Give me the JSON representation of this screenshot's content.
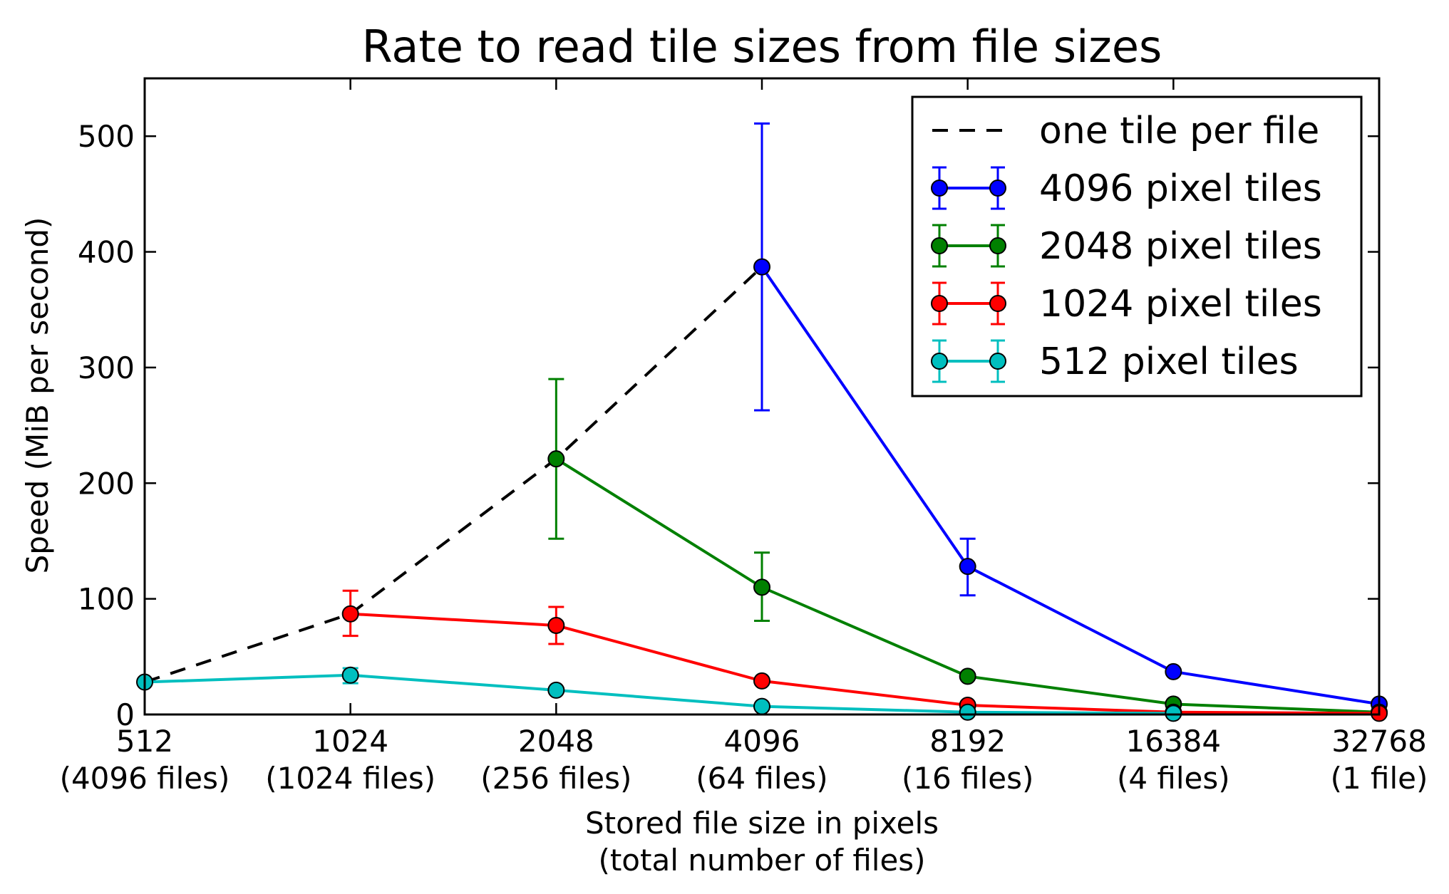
{
  "chart_data": {
    "type": "line",
    "title": "Rate to read tile sizes from file sizes",
    "xlabel": [
      "Stored file size in pixels",
      "(total number of files)"
    ],
    "ylabel": "Speed (MiB per second)",
    "x_scale": "log2",
    "xlim": [
      512,
      32768
    ],
    "ylim": [
      0,
      550
    ],
    "x_ticks": [
      {
        "value": 512,
        "label": "512",
        "sublabel": "(4096 files)"
      },
      {
        "value": 1024,
        "label": "1024",
        "sublabel": "(1024 files)"
      },
      {
        "value": 2048,
        "label": "2048",
        "sublabel": "(256 files)"
      },
      {
        "value": 4096,
        "label": "4096",
        "sublabel": "(64 files)"
      },
      {
        "value": 8192,
        "label": "8192",
        "sublabel": "(16 files)"
      },
      {
        "value": 16384,
        "label": "16384",
        "sublabel": "(4 files)"
      },
      {
        "value": 32768,
        "label": "32768",
        "sublabel": "(1 file)"
      }
    ],
    "y_ticks": [
      0,
      100,
      200,
      300,
      400,
      500
    ],
    "grid": false,
    "legend_position": "top-right",
    "series": [
      {
        "name": "one tile per file",
        "style": "dashed",
        "color": "#000000",
        "points": [
          {
            "x": 512,
            "y": 28
          },
          {
            "x": 1024,
            "y": 87
          },
          {
            "x": 2048,
            "y": 221
          },
          {
            "x": 4096,
            "y": 387
          }
        ]
      },
      {
        "name": "4096 pixel tiles",
        "style": "solid-markers",
        "color": "#0000ff",
        "points": [
          {
            "x": 4096,
            "y": 387,
            "err_low": 263,
            "err_high": 511
          },
          {
            "x": 8192,
            "y": 128,
            "err_low": 103,
            "err_high": 152
          },
          {
            "x": 16384,
            "y": 37,
            "err_low": 35,
            "err_high": 39
          },
          {
            "x": 32768,
            "y": 9,
            "err_low": 8,
            "err_high": 10
          }
        ]
      },
      {
        "name": "2048 pixel tiles",
        "style": "solid-markers",
        "color": "#008000",
        "points": [
          {
            "x": 2048,
            "y": 221,
            "err_low": 152,
            "err_high": 290
          },
          {
            "x": 4096,
            "y": 110,
            "err_low": 81,
            "err_high": 140
          },
          {
            "x": 8192,
            "y": 33,
            "err_low": 31,
            "err_high": 35
          },
          {
            "x": 16384,
            "y": 9,
            "err_low": 8,
            "err_high": 10
          },
          {
            "x": 32768,
            "y": 2,
            "err_low": 2,
            "err_high": 2
          }
        ]
      },
      {
        "name": "1024 pixel tiles",
        "style": "solid-markers",
        "color": "#ff0000",
        "points": [
          {
            "x": 1024,
            "y": 87,
            "err_low": 68,
            "err_high": 107
          },
          {
            "x": 2048,
            "y": 77,
            "err_low": 61,
            "err_high": 93
          },
          {
            "x": 4096,
            "y": 29,
            "err_low": 27,
            "err_high": 31
          },
          {
            "x": 8192,
            "y": 8,
            "err_low": 7,
            "err_high": 9
          },
          {
            "x": 16384,
            "y": 2,
            "err_low": 2,
            "err_high": 2
          },
          {
            "x": 32768,
            "y": 1,
            "err_low": 1,
            "err_high": 1
          }
        ]
      },
      {
        "name": "512 pixel tiles",
        "style": "solid-markers",
        "color": "#00bfbf",
        "points": [
          {
            "x": 512,
            "y": 28,
            "err_low": 26,
            "err_high": 30
          },
          {
            "x": 1024,
            "y": 34,
            "err_low": 27,
            "err_high": 40
          },
          {
            "x": 2048,
            "y": 21,
            "err_low": 19,
            "err_high": 23
          },
          {
            "x": 4096,
            "y": 7,
            "err_low": 6,
            "err_high": 8
          },
          {
            "x": 8192,
            "y": 2,
            "err_low": 2,
            "err_high": 2
          },
          {
            "x": 16384,
            "y": 1,
            "err_low": 1,
            "err_high": 1
          }
        ]
      }
    ]
  }
}
